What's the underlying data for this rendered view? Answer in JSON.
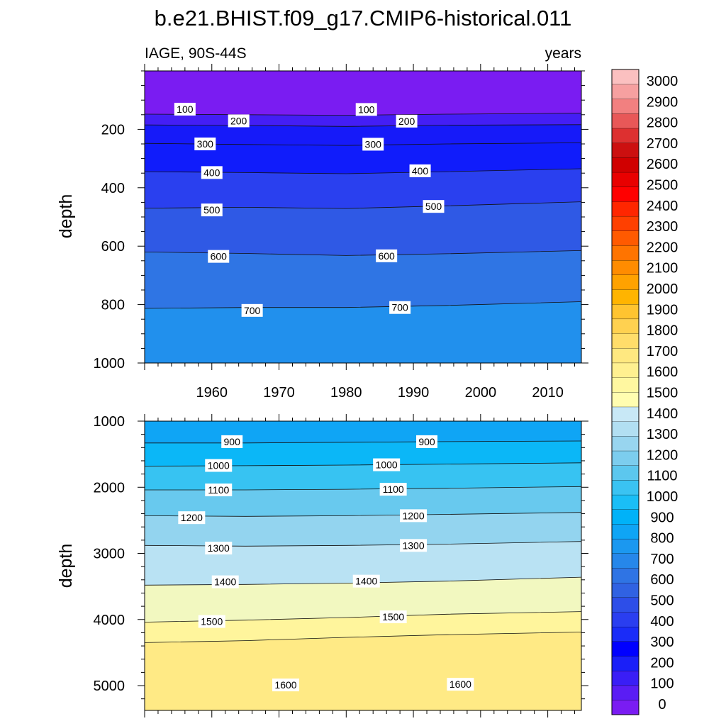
{
  "figure": {
    "title": "b.e21.BHIST.f09_g17.CMIP6-historical.011",
    "left_subtitle": "IAGE, 90S-44S",
    "right_subtitle": "years"
  },
  "chart_data": [
    {
      "type": "heatmap",
      "panel": "upper",
      "ylabel": "depth",
      "ylim": [
        0,
        1000
      ],
      "y_reversed": true,
      "yticks": [
        200,
        400,
        600,
        800,
        1000
      ],
      "xlim": [
        1950,
        2015
      ],
      "xticks": [
        1960,
        1970,
        1980,
        1990,
        2000,
        2010
      ],
      "contour_levels_years": [
        100,
        200,
        300,
        400,
        500,
        600,
        700
      ],
      "contour_lines": [
        {
          "level": 100,
          "points": [
            [
              1950,
              148
            ],
            [
              1965,
              150
            ],
            [
              1980,
              152
            ],
            [
              1995,
              148
            ],
            [
              2015,
              145
            ]
          ],
          "labeled": true
        },
        {
          "level": 200,
          "points": [
            [
              1950,
              185
            ],
            [
              1965,
              187
            ],
            [
              1980,
              190
            ],
            [
              1995,
              186
            ],
            [
              2015,
              184
            ]
          ],
          "labeled": true
        },
        {
          "level": 300,
          "points": [
            [
              1950,
              248
            ],
            [
              1965,
              252
            ],
            [
              1980,
              255
            ],
            [
              1995,
              250
            ],
            [
              2015,
              246
            ]
          ],
          "labeled": true
        },
        {
          "level": 400,
          "points": [
            [
              1950,
              345
            ],
            [
              1965,
              348
            ],
            [
              1980,
              352
            ],
            [
              1995,
              345
            ],
            [
              2015,
              335
            ]
          ],
          "labeled": true
        },
        {
          "level": 500,
          "points": [
            [
              1950,
              470
            ],
            [
              1965,
              467
            ],
            [
              1980,
              471
            ],
            [
              1995,
              462
            ],
            [
              2015,
              448
            ]
          ],
          "labeled": true
        },
        {
          "level": 600,
          "points": [
            [
              1950,
              620
            ],
            [
              1965,
              625
            ],
            [
              1980,
              632
            ],
            [
              1995,
              626
            ],
            [
              2015,
              615
            ]
          ],
          "labeled": true
        },
        {
          "level": 700,
          "points": [
            [
              1950,
              813
            ],
            [
              1965,
              810
            ],
            [
              1980,
              810
            ],
            [
              1995,
              803
            ],
            [
              2015,
              790
            ]
          ],
          "labeled": true
        }
      ],
      "contour_labels": [
        {
          "text": "100",
          "x": 1956,
          "y": 131
        },
        {
          "text": "100",
          "x": 1983,
          "y": 132
        },
        {
          "text": "200",
          "x": 1964,
          "y": 171
        },
        {
          "text": "200",
          "x": 1989,
          "y": 172
        },
        {
          "text": "300",
          "x": 1959,
          "y": 250
        },
        {
          "text": "300",
          "x": 1984,
          "y": 251
        },
        {
          "text": "400",
          "x": 1960,
          "y": 348
        },
        {
          "text": "400",
          "x": 1991,
          "y": 342
        },
        {
          "text": "500",
          "x": 1960,
          "y": 476
        },
        {
          "text": "500",
          "x": 1993,
          "y": 464
        },
        {
          "text": "600",
          "x": 1961,
          "y": 635
        },
        {
          "text": "600",
          "x": 1986,
          "y": 633
        },
        {
          "text": "700",
          "x": 1966,
          "y": 820
        },
        {
          "text": "700",
          "x": 1988,
          "y": 810
        }
      ]
    },
    {
      "type": "heatmap",
      "panel": "lower",
      "ylabel": "depth",
      "ylim": [
        1000,
        5375
      ],
      "y_reversed": true,
      "yticks": [
        1000,
        2000,
        3000,
        4000,
        5000
      ],
      "xlim": [
        1950,
        2015
      ],
      "contour_levels_years": [
        900,
        1000,
        1100,
        1200,
        1300,
        1400,
        1500,
        1600
      ],
      "contour_lines": [
        {
          "level": 900,
          "points": [
            [
              1950,
              1330
            ],
            [
              1965,
              1330
            ],
            [
              1980,
              1320
            ],
            [
              1995,
              1310
            ],
            [
              2015,
              1300
            ]
          ],
          "labeled": true
        },
        {
          "level": 1000,
          "points": [
            [
              1950,
              1680
            ],
            [
              1965,
              1675
            ],
            [
              1980,
              1665
            ],
            [
              1995,
              1650
            ],
            [
              2015,
              1630
            ]
          ],
          "labeled": true
        },
        {
          "level": 1100,
          "points": [
            [
              1950,
              2040
            ],
            [
              1965,
              2040
            ],
            [
              1980,
              2030
            ],
            [
              1995,
              2015
            ],
            [
              2015,
              1990
            ]
          ],
          "labeled": true
        },
        {
          "level": 1200,
          "points": [
            [
              1950,
              2430
            ],
            [
              1965,
              2440
            ],
            [
              1980,
              2430
            ],
            [
              1995,
              2410
            ],
            [
              2015,
              2380
            ]
          ],
          "labeled": true
        },
        {
          "level": 1300,
          "points": [
            [
              1950,
              2880
            ],
            [
              1965,
              2890
            ],
            [
              1980,
              2880
            ],
            [
              1995,
              2860
            ],
            [
              2015,
              2820
            ]
          ],
          "labeled": true
        },
        {
          "level": 1400,
          "points": [
            [
              1950,
              3480
            ],
            [
              1965,
              3470
            ],
            [
              1980,
              3450
            ],
            [
              1995,
              3420
            ],
            [
              2015,
              3360
            ]
          ],
          "labeled": true
        },
        {
          "level": 1500,
          "points": [
            [
              1950,
              4040
            ],
            [
              1965,
              4010
            ],
            [
              1980,
              3970
            ],
            [
              1995,
              3920
            ],
            [
              2015,
              3880
            ]
          ],
          "labeled": true
        },
        {
          "level": 1600,
          "points": [
            [
              1950,
              4350
            ],
            [
              1965,
              4320
            ],
            [
              1980,
              4270
            ],
            [
              1995,
              4230
            ],
            [
              2015,
              4190
            ]
          ],
          "labeled": false
        }
      ],
      "contour_labels": [
        {
          "text": "900",
          "x": 1963,
          "y": 1310
        },
        {
          "text": "900",
          "x": 1992,
          "y": 1310
        },
        {
          "text": "1000",
          "x": 1961,
          "y": 1670
        },
        {
          "text": "1000",
          "x": 1986,
          "y": 1660
        },
        {
          "text": "1100",
          "x": 1961,
          "y": 2040
        },
        {
          "text": "1100",
          "x": 1987,
          "y": 2030
        },
        {
          "text": "1200",
          "x": 1957,
          "y": 2460
        },
        {
          "text": "1200",
          "x": 1990,
          "y": 2430
        },
        {
          "text": "1300",
          "x": 1961,
          "y": 2920
        },
        {
          "text": "1300",
          "x": 1990,
          "y": 2880
        },
        {
          "text": "1400",
          "x": 1962,
          "y": 3430
        },
        {
          "text": "1400",
          "x": 1983,
          "y": 3420
        },
        {
          "text": "1500",
          "x": 1960,
          "y": 4030
        },
        {
          "text": "1500",
          "x": 1987,
          "y": 3960
        },
        {
          "text": "1600",
          "x": 1997,
          "y": 4980
        },
        {
          "text": "1600",
          "x": 1971,
          "y": 4990
        }
      ]
    }
  ],
  "colorbar": {
    "labels": [
      "0",
      "100",
      "200",
      "300",
      "400",
      "500",
      "600",
      "700",
      "800",
      "900",
      "1000",
      "1100",
      "1200",
      "1300",
      "1400",
      "1500",
      "1600",
      "1700",
      "1800",
      "1900",
      "2000",
      "2100",
      "2200",
      "2300",
      "2400",
      "2500",
      "2600",
      "2700",
      "2800",
      "2900",
      "3000"
    ],
    "colors_bottom_to_top": [
      "#7a1cf2",
      "#5a1df4",
      "#3a1ef6",
      "#1a1ff8",
      "#0000ff",
      "#1a2cf8",
      "#2a3ef0",
      "#2d4ee8",
      "#3062e2",
      "#2f74e4",
      "#2687ea",
      "#1b98f0",
      "#0fa5f5",
      "#00b2f8",
      "#1abef6",
      "#3ac3f2",
      "#5cc7ee",
      "#7ccdee",
      "#98d5ef",
      "#b2dff2",
      "#c8e8f6",
      "#fffdb0",
      "#fff7a0",
      "#fff090",
      "#ffe880",
      "#ffdd6a",
      "#ffd150",
      "#ffc430",
      "#ffb400",
      "#ffa200",
      "#ff8c00",
      "#ff7400",
      "#ff5a00",
      "#ff4000",
      "#ff2600",
      "#ff0000",
      "#e80000",
      "#d00000",
      "#cc1010",
      "#dd3030",
      "#e85858",
      "#f28080",
      "#f6a0a0",
      "#fbc0c0"
    ]
  }
}
